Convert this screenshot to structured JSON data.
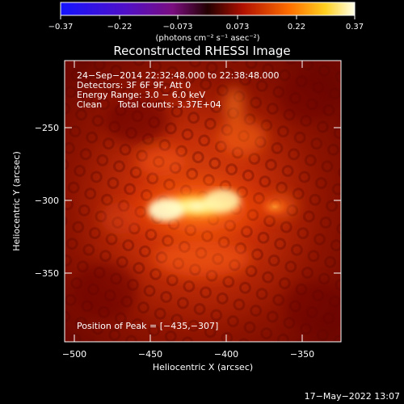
{
  "colorbar": {
    "ticks": [
      "−0.37",
      "−0.22",
      "−0.073",
      "0.073",
      "0.22",
      "0.37"
    ],
    "units_label": "(photons cm⁻² s⁻¹ asec⁻²)"
  },
  "image": {
    "title": "Reconstructed RHESSI Image",
    "info": {
      "line1": "24−Sep−2014 22:32:48.000 to 22:38:48.000",
      "line2": "Detectors: 3F 6F 9F, Att 0",
      "line3": "Energy Range: 3.0 − 6.0 keV",
      "line4_left": "Clean",
      "line4_right": "Total counts: 3.37E+04"
    },
    "peak_text": "Position of Peak = [−435,−307]"
  },
  "axes": {
    "x_label": "Heliocentric X (arcsec)",
    "y_label": "Heliocentric Y (arcsec)",
    "x_ticks": [
      "−500",
      "−450",
      "−400",
      "−350"
    ],
    "y_ticks": [
      "−250",
      "−300",
      "−350"
    ]
  },
  "footer": {
    "date_time": "17−May−2022 13:07"
  }
}
